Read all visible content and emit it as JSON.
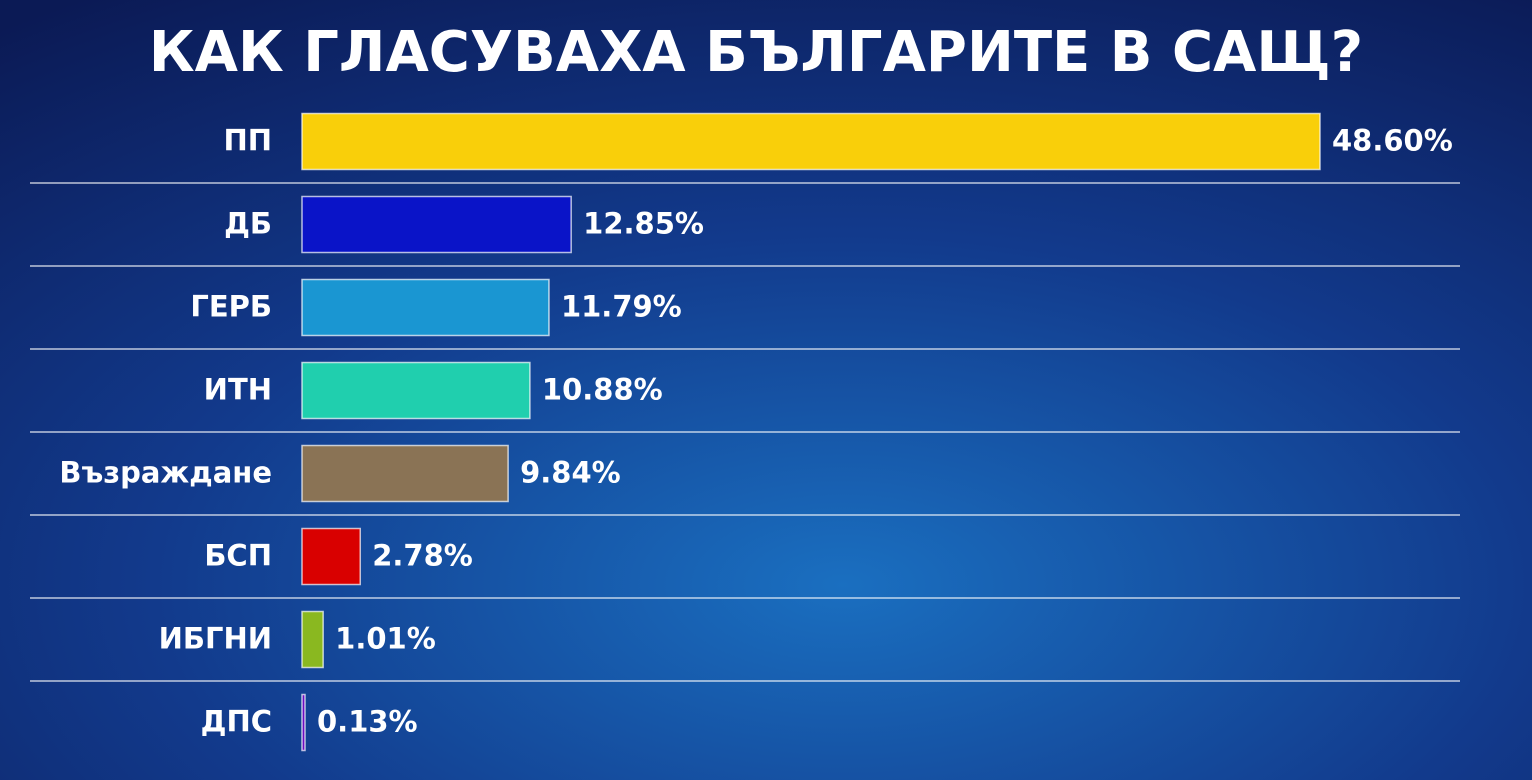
{
  "chart_data": {
    "type": "bar",
    "orientation": "horizontal",
    "title": "КАК ГЛАСУВАХА БЪЛГАРИТЕ В САЩ?",
    "categories": [
      "ПП",
      "ДБ",
      "ГЕРБ",
      "ИТН",
      "Възраждане",
      "БСП",
      "ИБГНИ",
      "ДПС"
    ],
    "values": [
      48.6,
      12.85,
      11.79,
      10.88,
      9.84,
      2.78,
      1.01,
      0.13
    ],
    "value_labels": [
      "48.60%",
      "12.85%",
      "11.79%",
      "10.88%",
      "9.84%",
      "2.78%",
      "1.01%",
      "0.13%"
    ],
    "colors": [
      "#f9cf0a",
      "#0a14c8",
      "#1a96d2",
      "#20cfae",
      "#8a7355",
      "#d90000",
      "#8ab820",
      "#6a0fc0"
    ]
  }
}
